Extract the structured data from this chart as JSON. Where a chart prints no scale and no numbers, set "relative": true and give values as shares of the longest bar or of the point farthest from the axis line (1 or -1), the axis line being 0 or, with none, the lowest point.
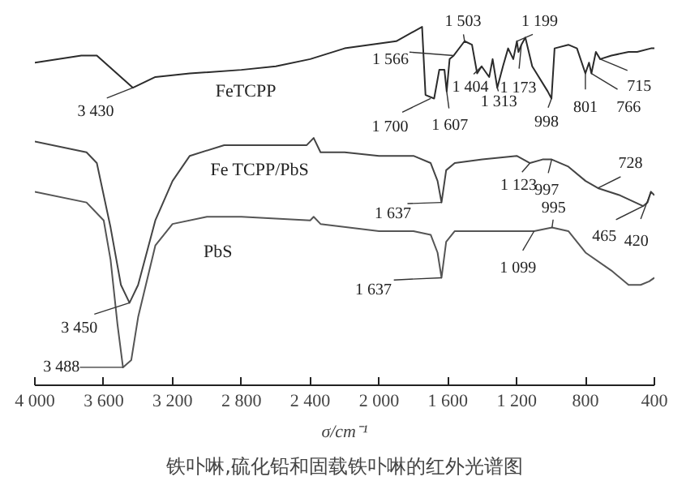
{
  "chart_data": {
    "type": "line",
    "title": "铁卟啉,硫化铅和固载铁卟啉的红外光谱图",
    "xlabel": "σ/cm⁻¹",
    "relative": true,
    "xlim": [
      4000,
      400
    ],
    "xticks": [
      {
        "value": 4000,
        "label": "4 000"
      },
      {
        "value": 3600,
        "label": "3 600"
      },
      {
        "value": 3200,
        "label": "3 200"
      },
      {
        "value": 2800,
        "label": "2 800"
      },
      {
        "value": 2400,
        "label": "2 400"
      },
      {
        "value": 2000,
        "label": "2 000"
      },
      {
        "value": 1600,
        "label": "1 600"
      },
      {
        "value": 1200,
        "label": "1 200"
      },
      {
        "value": 800,
        "label": "800"
      },
      {
        "value": 400,
        "label": "400"
      }
    ],
    "series": [
      {
        "name": "FeTCPP",
        "color": "#2b2b2b",
        "x": [
          4000,
          3730,
          3640,
          3430,
          3300,
          3100,
          2800,
          2600,
          2400,
          2200,
          1900,
          1750,
          1730,
          1680,
          1650,
          1620,
          1607,
          1590,
          1566,
          1503,
          1460,
          1430,
          1404,
          1360,
          1340,
          1313,
          1280,
          1250,
          1220,
          1199,
          1190,
          1173,
          1150,
          1110,
          1020,
          998,
          980,
          900,
          850,
          801,
          780,
          766,
          740,
          715,
          650,
          550,
          500,
          420,
          400
        ],
        "values": [
          0.9,
          0.92,
          0.92,
          0.83,
          0.86,
          0.87,
          0.88,
          0.89,
          0.91,
          0.94,
          0.96,
          1.0,
          0.81,
          0.8,
          0.88,
          0.88,
          0.82,
          0.91,
          0.92,
          0.96,
          0.95,
          0.87,
          0.89,
          0.86,
          0.91,
          0.83,
          0.89,
          0.94,
          0.91,
          0.96,
          0.93,
          0.95,
          0.97,
          0.89,
          0.82,
          0.8,
          0.94,
          0.95,
          0.94,
          0.87,
          0.9,
          0.87,
          0.93,
          0.91,
          0.92,
          0.93,
          0.93,
          0.94,
          0.94
        ]
      },
      {
        "name": "Fe TCPP/PbS",
        "color": "#444444",
        "x": [
          4000,
          3700,
          3640,
          3560,
          3500,
          3450,
          3400,
          3300,
          3200,
          3100,
          2900,
          2600,
          2420,
          2380,
          2340,
          2200,
          2000,
          1800,
          1700,
          1660,
          1637,
          1610,
          1560,
          1400,
          1200,
          1123,
          1050,
          997,
          900,
          800,
          728,
          600,
          465,
          440,
          420,
          400
        ],
        "values": [
          0.68,
          0.65,
          0.62,
          0.44,
          0.28,
          0.23,
          0.28,
          0.46,
          0.57,
          0.64,
          0.67,
          0.67,
          0.67,
          0.69,
          0.65,
          0.65,
          0.64,
          0.64,
          0.62,
          0.57,
          0.51,
          0.6,
          0.62,
          0.63,
          0.64,
          0.62,
          0.63,
          0.63,
          0.61,
          0.57,
          0.55,
          0.53,
          0.5,
          0.51,
          0.54,
          0.53
        ]
      },
      {
        "name": "PbS",
        "color": "#555555",
        "x": [
          4000,
          3700,
          3600,
          3560,
          3520,
          3488,
          3440,
          3400,
          3300,
          3200,
          3000,
          2800,
          2400,
          2380,
          2340,
          2000,
          1800,
          1700,
          1660,
          1637,
          1610,
          1560,
          1400,
          1200,
          1099,
          995,
          900,
          800,
          650,
          550,
          480,
          430,
          400
        ],
        "values": [
          0.54,
          0.51,
          0.46,
          0.35,
          0.17,
          0.05,
          0.07,
          0.19,
          0.39,
          0.45,
          0.47,
          0.47,
          0.46,
          0.47,
          0.45,
          0.43,
          0.43,
          0.42,
          0.37,
          0.3,
          0.4,
          0.43,
          0.43,
          0.43,
          0.43,
          0.44,
          0.43,
          0.37,
          0.32,
          0.28,
          0.28,
          0.29,
          0.3
        ]
      }
    ],
    "annotations": [
      {
        "text": "3 430",
        "x": 3430,
        "y": 0.83
      },
      {
        "text": "1 700",
        "x": 1700,
        "y": 0.8
      },
      {
        "text": "1 607",
        "x": 1607,
        "y": 0.82
      },
      {
        "text": "1 566",
        "x": 1566,
        "y": 0.92
      },
      {
        "text": "1 503",
        "x": 1503,
        "y": 0.96
      },
      {
        "text": "1 404",
        "x": 1404,
        "y": 0.89
      },
      {
        "text": "1 313",
        "x": 1313,
        "y": 0.83
      },
      {
        "text": "1 199",
        "x": 1199,
        "y": 0.96
      },
      {
        "text": "1 173",
        "x": 1173,
        "y": 0.95
      },
      {
        "text": "998",
        "x": 998,
        "y": 0.8
      },
      {
        "text": "801",
        "x": 801,
        "y": 0.87
      },
      {
        "text": "766",
        "x": 766,
        "y": 0.87
      },
      {
        "text": "715",
        "x": 715,
        "y": 0.91
      },
      {
        "text": "3 450",
        "x": 3450,
        "y": 0.23
      },
      {
        "text": "1 637",
        "x": 1637,
        "y": 0.51
      },
      {
        "text": "1 123",
        "x": 1123,
        "y": 0.62
      },
      {
        "text": "997",
        "x": 997,
        "y": 0.63
      },
      {
        "text": "728",
        "x": 728,
        "y": 0.55
      },
      {
        "text": "465",
        "x": 465,
        "y": 0.5
      },
      {
        "text": "420",
        "x": 420,
        "y": 0.54
      },
      {
        "text": "3 488",
        "x": 3488,
        "y": 0.05
      },
      {
        "text": "1 637",
        "x": 1637,
        "y": 0.3
      },
      {
        "text": "1 099",
        "x": 1099,
        "y": 0.43
      },
      {
        "text": "995",
        "x": 995,
        "y": 0.44
      }
    ]
  }
}
